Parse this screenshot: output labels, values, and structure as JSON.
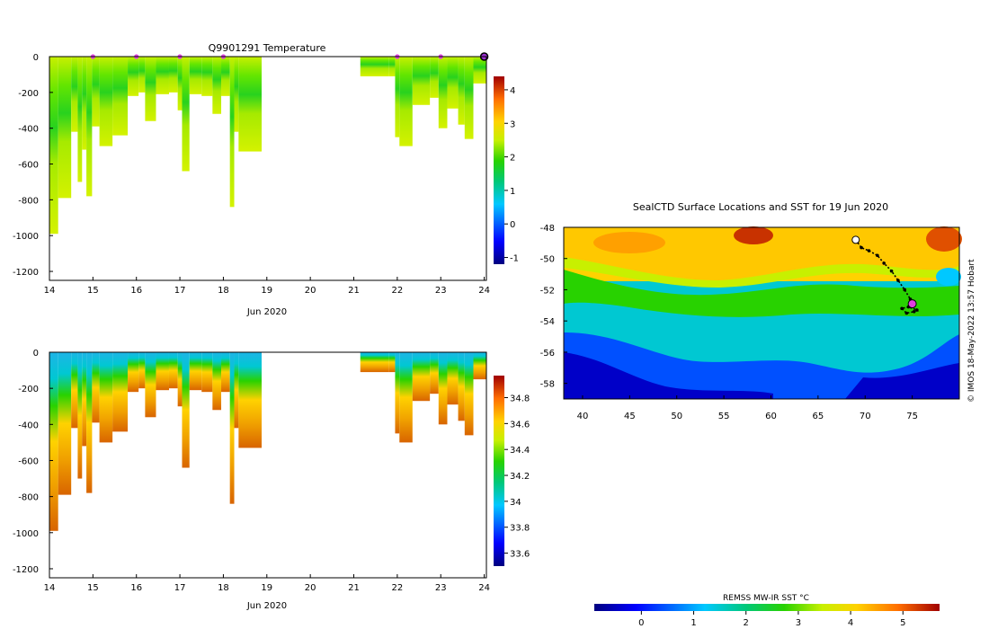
{
  "chart_data": [
    {
      "id": "temperature-profile",
      "type": "heatmap",
      "title": "Q9901291  Temperature",
      "xlabel": "Jun 2020",
      "ylabel": "",
      "xlim": [
        14,
        24.05
      ],
      "ylim": [
        -1250,
        0
      ],
      "xticks": [
        14,
        15,
        16,
        17,
        18,
        19,
        20,
        21,
        22,
        23,
        24
      ],
      "yticks": [
        0,
        -200,
        -400,
        -600,
        -800,
        -1000,
        -1200
      ],
      "colorbar": {
        "min": -1.2,
        "max": 4.4,
        "ticks": [
          4,
          3,
          2,
          1,
          0,
          -1
        ],
        "colormap": "jet"
      },
      "profile_markers_x": [
        15,
        16,
        17,
        18,
        22,
        23
      ],
      "last_profile_marker_x": 24,
      "profiles": [
        {
          "x0": 14.0,
          "x1": 14.2,
          "depth": 990
        },
        {
          "x0": 14.2,
          "x1": 14.5,
          "depth": 790
        },
        {
          "x0": 14.5,
          "x1": 14.65,
          "depth": 420
        },
        {
          "x0": 14.65,
          "x1": 14.75,
          "depth": 700
        },
        {
          "x0": 14.75,
          "x1": 14.85,
          "depth": 520
        },
        {
          "x0": 14.85,
          "x1": 14.98,
          "depth": 780
        },
        {
          "x0": 14.98,
          "x1": 15.15,
          "depth": 390
        },
        {
          "x0": 15.15,
          "x1": 15.45,
          "depth": 500
        },
        {
          "x0": 15.45,
          "x1": 15.8,
          "depth": 440
        },
        {
          "x0": 15.8,
          "x1": 16.05,
          "depth": 220
        },
        {
          "x0": 16.05,
          "x1": 16.2,
          "depth": 200
        },
        {
          "x0": 16.2,
          "x1": 16.45,
          "depth": 360
        },
        {
          "x0": 16.45,
          "x1": 16.75,
          "depth": 210
        },
        {
          "x0": 16.75,
          "x1": 16.95,
          "depth": 200
        },
        {
          "x0": 16.95,
          "x1": 17.05,
          "depth": 300
        },
        {
          "x0": 17.05,
          "x1": 17.22,
          "depth": 640
        },
        {
          "x0": 17.22,
          "x1": 17.5,
          "depth": 210
        },
        {
          "x0": 17.5,
          "x1": 17.75,
          "depth": 220
        },
        {
          "x0": 17.75,
          "x1": 17.95,
          "depth": 320
        },
        {
          "x0": 17.95,
          "x1": 18.15,
          "depth": 220
        },
        {
          "x0": 18.15,
          "x1": 18.25,
          "depth": 840
        },
        {
          "x0": 18.25,
          "x1": 18.35,
          "depth": 420
        },
        {
          "x0": 18.35,
          "x1": 18.88,
          "depth": 530
        },
        {
          "x0": 21.15,
          "x1": 21.8,
          "depth": 110
        },
        {
          "x0": 21.8,
          "x1": 21.95,
          "depth": 110
        },
        {
          "x0": 21.95,
          "x1": 22.05,
          "depth": 450
        },
        {
          "x0": 22.05,
          "x1": 22.35,
          "depth": 500
        },
        {
          "x0": 22.35,
          "x1": 22.75,
          "depth": 270
        },
        {
          "x0": 22.75,
          "x1": 22.95,
          "depth": 230
        },
        {
          "x0": 22.95,
          "x1": 23.15,
          "depth": 400
        },
        {
          "x0": 23.15,
          "x1": 23.4,
          "depth": 290
        },
        {
          "x0": 23.4,
          "x1": 23.55,
          "depth": 380
        },
        {
          "x0": 23.55,
          "x1": 23.75,
          "depth": 460
        },
        {
          "x0": 23.75,
          "x1": 24.05,
          "depth": 150
        }
      ]
    },
    {
      "id": "salinity-profile",
      "type": "heatmap",
      "title": "",
      "xlabel": "Jun 2020",
      "ylabel": "",
      "xlim": [
        14,
        24.05
      ],
      "ylim": [
        -1250,
        0
      ],
      "xticks": [
        14,
        15,
        16,
        17,
        18,
        19,
        20,
        21,
        22,
        23,
        24
      ],
      "yticks": [
        0,
        -200,
        -400,
        -600,
        -800,
        -1000,
        -1200
      ],
      "colorbar": {
        "min": 33.5,
        "max": 34.97,
        "ticks": [
          34.8,
          34.6,
          34.4,
          34.2,
          34,
          33.8,
          33.6
        ],
        "tick_labels": [
          "34.8",
          "34.6",
          "34.4",
          "34.2",
          "34",
          "33.8",
          "33.6"
        ],
        "colormap": "jet"
      }
    },
    {
      "id": "sst-map",
      "type": "heatmap",
      "title": "SealCTD Surface Locations and SST for 19 Jun 2020",
      "xlabel": "",
      "ylabel": "",
      "xlim": [
        38,
        80
      ],
      "ylim": [
        -59,
        -48
      ],
      "xticks": [
        40,
        45,
        50,
        55,
        60,
        65,
        70,
        75
      ],
      "yticks": [
        -48,
        -50,
        -52,
        -54,
        -56,
        -58
      ],
      "colorbar": {
        "label": "REMSS MW-IR SST °C",
        "min": -0.9,
        "max": 5.7,
        "ticks": [
          0,
          1,
          2,
          3,
          4,
          5
        ],
        "colormap": "jet"
      },
      "track": [
        [
          69,
          -48.8
        ],
        [
          69.6,
          -49.3
        ],
        [
          70.4,
          -49.5
        ],
        [
          71.3,
          -49.8
        ],
        [
          72,
          -50.3
        ],
        [
          72.8,
          -50.8
        ],
        [
          73.5,
          -51.4
        ],
        [
          74.2,
          -52
        ],
        [
          74.8,
          -52.6
        ],
        [
          75.1,
          -53
        ],
        [
          75.5,
          -53.3
        ],
        [
          74.6,
          -53.1
        ],
        [
          73.9,
          -53.2
        ],
        [
          74.4,
          -53.5
        ],
        [
          75.2,
          -53.4
        ]
      ],
      "current_position": [
        75.0,
        -52.9
      ]
    }
  ],
  "credit": "© IMOS 18-May-2022 13:57 Hobart"
}
